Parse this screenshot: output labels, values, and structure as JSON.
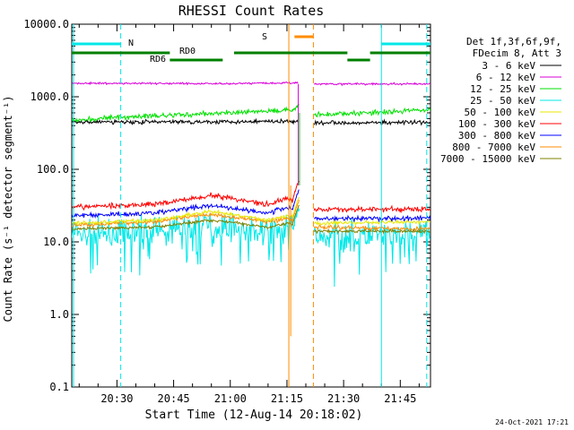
{
  "chart_data": {
    "type": "line",
    "title": "RHESSI Count Rates",
    "xlabel": "Start Time (12-Aug-14 20:18:02)",
    "ylabel": "Count Rate (s⁻¹ detector segment⁻¹)",
    "yscale": "log",
    "ylim": [
      0.1,
      10000
    ],
    "xlim": [
      "20:18:02",
      "21:53:00"
    ],
    "xticks": [
      "20:30",
      "20:45",
      "21:00",
      "21:15",
      "21:30",
      "21:45"
    ],
    "yticks": [
      "0.1",
      "1.0",
      "10.0",
      "100.0",
      "1000.0",
      "10000.0"
    ],
    "grid": false,
    "legend_header": [
      "Det 1f,3f,6f,9f,",
      "FDecim 8, Att 3"
    ],
    "legend_position": "right",
    "timestamp": "24-Oct-2021 17:21",
    "gap": [
      "21:17:00",
      "21:21:30"
    ],
    "series": [
      {
        "name": "3 - 6 keV",
        "color": "#000000",
        "noise": 0.04,
        "flare": false,
        "points": [
          [
            "20:18:02",
            450
          ],
          [
            "20:45",
            450
          ],
          [
            "21:15",
            460
          ],
          [
            "21:22",
            440
          ],
          [
            "21:53",
            440
          ]
        ]
      },
      {
        "name": "6 - 12 keV",
        "color": "#d800d8",
        "noise": 0.02,
        "flare": false,
        "points": [
          [
            "20:18:02",
            1530
          ],
          [
            "21:00",
            1520
          ],
          [
            "21:15",
            1560
          ],
          [
            "21:22",
            1500
          ],
          [
            "21:53",
            1500
          ]
        ]
      },
      {
        "name": "12 - 25 keV",
        "color": "#00e000",
        "noise": 0.05,
        "flare": true,
        "points": [
          [
            "20:18:02",
            470
          ],
          [
            "20:30",
            520
          ],
          [
            "20:45",
            560
          ],
          [
            "21:00",
            600
          ],
          [
            "21:15",
            650
          ],
          [
            "21:22",
            560
          ],
          [
            "21:53",
            660
          ]
        ]
      },
      {
        "name": "25 - 50 keV",
        "color": "#00e8e8",
        "noise": 0.28,
        "flare": true,
        "points": [
          [
            "20:18:02",
            13
          ],
          [
            "20:40",
            14
          ],
          [
            "20:55",
            17
          ],
          [
            "21:10",
            14
          ],
          [
            "21:15",
            16
          ],
          [
            "21:22",
            12
          ],
          [
            "21:53",
            13
          ]
        ]
      },
      {
        "name": "50 - 100 keV",
        "color": "#e8e800",
        "noise": 0.04,
        "flare": true,
        "points": [
          [
            "20:18:02",
            18
          ],
          [
            "20:40",
            20
          ],
          [
            "20:55",
            26
          ],
          [
            "21:10",
            20
          ],
          [
            "21:15",
            23
          ],
          [
            "21:22",
            18
          ],
          [
            "21:53",
            19
          ]
        ]
      },
      {
        "name": "100 - 300 keV",
        "color": "#ff0000",
        "noise": 0.05,
        "flare": true,
        "points": [
          [
            "20:18:02",
            30
          ],
          [
            "20:40",
            33
          ],
          [
            "20:55",
            44
          ],
          [
            "21:10",
            33
          ],
          [
            "21:15",
            40
          ],
          [
            "21:22",
            28
          ],
          [
            "21:53",
            28
          ]
        ]
      },
      {
        "name": "300 - 800 keV",
        "color": "#0000ff",
        "noise": 0.05,
        "flare": true,
        "points": [
          [
            "20:18:02",
            23
          ],
          [
            "20:40",
            25
          ],
          [
            "20:55",
            32
          ],
          [
            "21:10",
            25
          ],
          [
            "21:15",
            30
          ],
          [
            "21:22",
            21
          ],
          [
            "21:53",
            21
          ]
        ]
      },
      {
        "name": "800 - 7000 keV",
        "color": "#ff8c00",
        "noise": 0.04,
        "flare": true,
        "points": [
          [
            "20:18:02",
            17
          ],
          [
            "20:40",
            19
          ],
          [
            "20:55",
            24
          ],
          [
            "21:10",
            19
          ],
          [
            "21:15",
            21
          ],
          [
            "21:22",
            16
          ],
          [
            "21:53",
            15
          ]
        ]
      },
      {
        "name": "7000 - 15000 keV",
        "color": "#808000",
        "noise": 0.03,
        "flare": true,
        "points": [
          [
            "20:18:02",
            15
          ],
          [
            "20:40",
            16
          ],
          [
            "20:55",
            20
          ],
          [
            "21:10",
            16
          ],
          [
            "21:15",
            18
          ],
          [
            "21:22",
            14
          ],
          [
            "21:53",
            14
          ]
        ]
      }
    ],
    "flags": [
      {
        "label": "N",
        "color": "#00e8e8",
        "segments": [
          [
            "20:18:02",
            "20:31"
          ],
          [
            "21:40",
            "21:53"
          ]
        ],
        "row": "high"
      },
      {
        "label": "RD0",
        "color": "#008000",
        "segments": [
          [
            "20:18:02",
            "20:44"
          ],
          [
            "21:01",
            "21:31"
          ],
          [
            "21:37",
            "21:53"
          ]
        ],
        "row": "mid"
      },
      {
        "label": "RD6",
        "color": "#008000",
        "segments": [
          [
            "20:44",
            "20:58"
          ],
          [
            "21:31",
            "21:37"
          ]
        ],
        "row": "low"
      },
      {
        "label": "S",
        "color": "#ff8c00",
        "segments": [
          [
            "21:17",
            "21:22"
          ]
        ],
        "row": "top"
      }
    ],
    "markers": [
      {
        "time": "20:18:30",
        "color": "#00e8e8",
        "style": "solid"
      },
      {
        "time": "20:31",
        "color": "#00e8e8",
        "style": "dashed"
      },
      {
        "time": "21:40",
        "color": "#00e8e8",
        "style": "solid"
      },
      {
        "time": "21:52",
        "color": "#00e8e8",
        "style": "dashed"
      },
      {
        "time": "21:15:30",
        "color": "#ff8c00",
        "style": "solid"
      },
      {
        "time": "21:22",
        "color": "#ff8c00",
        "style": "dashed"
      }
    ]
  }
}
